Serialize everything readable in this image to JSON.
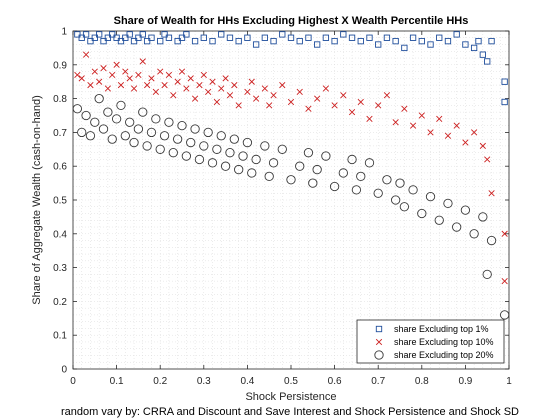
{
  "chart_data": {
    "type": "scatter",
    "title": "Share of Wealth for HHs Excluding Highest X Wealth Percentile HHs",
    "xlabel": "Shock Persistence",
    "ylabel": "Share of Aggregate Wealth (cash-on-hand)",
    "caption": "random vary by: CRRA and Discount and Save Interest and Shock Persistence and Shock SD",
    "xlim": [
      0,
      1
    ],
    "ylim": [
      0,
      1
    ],
    "xticks": [
      "0",
      "0.1",
      "0.2",
      "0.3",
      "0.4",
      "0.5",
      "0.6",
      "0.7",
      "0.8",
      "0.9",
      "1"
    ],
    "yticks": [
      "0",
      "0.1",
      "0.2",
      "0.3",
      "0.4",
      "0.5",
      "0.6",
      "0.7",
      "0.8",
      "0.9",
      "1"
    ],
    "grid": "minor",
    "legend_position": "bottom-right",
    "series": [
      {
        "name": "share Excluding top 1%",
        "marker": "square",
        "color": "#1f4e9c",
        "points": [
          [
            0.01,
            0.99
          ],
          [
            0.02,
            0.98
          ],
          [
            0.03,
            0.99
          ],
          [
            0.04,
            0.97
          ],
          [
            0.05,
            0.98
          ],
          [
            0.06,
            0.99
          ],
          [
            0.07,
            0.97
          ],
          [
            0.08,
            0.98
          ],
          [
            0.09,
            0.99
          ],
          [
            0.1,
            0.98
          ],
          [
            0.11,
            0.97
          ],
          [
            0.12,
            0.98
          ],
          [
            0.13,
            0.99
          ],
          [
            0.14,
            0.97
          ],
          [
            0.15,
            0.98
          ],
          [
            0.16,
            0.99
          ],
          [
            0.17,
            0.97
          ],
          [
            0.18,
            0.98
          ],
          [
            0.2,
            0.97
          ],
          [
            0.21,
            0.99
          ],
          [
            0.22,
            0.98
          ],
          [
            0.24,
            0.97
          ],
          [
            0.25,
            0.98
          ],
          [
            0.26,
            0.99
          ],
          [
            0.28,
            0.97
          ],
          [
            0.3,
            0.98
          ],
          [
            0.32,
            0.97
          ],
          [
            0.34,
            0.99
          ],
          [
            0.36,
            0.98
          ],
          [
            0.38,
            0.97
          ],
          [
            0.4,
            0.98
          ],
          [
            0.42,
            0.96
          ],
          [
            0.44,
            0.98
          ],
          [
            0.46,
            0.97
          ],
          [
            0.48,
            0.99
          ],
          [
            0.5,
            0.98
          ],
          [
            0.52,
            0.97
          ],
          [
            0.54,
            0.98
          ],
          [
            0.56,
            0.96
          ],
          [
            0.58,
            0.98
          ],
          [
            0.6,
            0.97
          ],
          [
            0.62,
            0.99
          ],
          [
            0.64,
            0.98
          ],
          [
            0.66,
            0.97
          ],
          [
            0.68,
            0.98
          ],
          [
            0.7,
            0.96
          ],
          [
            0.72,
            0.98
          ],
          [
            0.74,
            0.97
          ],
          [
            0.76,
            0.95
          ],
          [
            0.78,
            0.98
          ],
          [
            0.8,
            0.97
          ],
          [
            0.82,
            0.96
          ],
          [
            0.84,
            0.98
          ],
          [
            0.86,
            0.97
          ],
          [
            0.88,
            0.99
          ],
          [
            0.9,
            0.96
          ],
          [
            0.92,
            0.95
          ],
          [
            0.93,
            0.97
          ],
          [
            0.94,
            0.93
          ],
          [
            0.95,
            0.91
          ],
          [
            0.96,
            0.97
          ],
          [
            0.99,
            0.85
          ],
          [
            0.99,
            0.79
          ]
        ]
      },
      {
        "name": "share Excluding top 10%",
        "marker": "x",
        "color": "#cc1f1f",
        "points": [
          [
            0.01,
            0.87
          ],
          [
            0.02,
            0.86
          ],
          [
            0.03,
            0.93
          ],
          [
            0.04,
            0.84
          ],
          [
            0.05,
            0.88
          ],
          [
            0.06,
            0.85
          ],
          [
            0.07,
            0.89
          ],
          [
            0.08,
            0.83
          ],
          [
            0.09,
            0.87
          ],
          [
            0.1,
            0.9
          ],
          [
            0.11,
            0.84
          ],
          [
            0.12,
            0.88
          ],
          [
            0.13,
            0.86
          ],
          [
            0.14,
            0.83
          ],
          [
            0.15,
            0.87
          ],
          [
            0.16,
            0.91
          ],
          [
            0.17,
            0.84
          ],
          [
            0.18,
            0.86
          ],
          [
            0.19,
            0.82
          ],
          [
            0.2,
            0.88
          ],
          [
            0.21,
            0.84
          ],
          [
            0.22,
            0.87
          ],
          [
            0.23,
            0.81
          ],
          [
            0.24,
            0.85
          ],
          [
            0.25,
            0.88
          ],
          [
            0.26,
            0.83
          ],
          [
            0.27,
            0.86
          ],
          [
            0.28,
            0.8
          ],
          [
            0.29,
            0.84
          ],
          [
            0.3,
            0.87
          ],
          [
            0.31,
            0.82
          ],
          [
            0.32,
            0.85
          ],
          [
            0.33,
            0.79
          ],
          [
            0.34,
            0.83
          ],
          [
            0.35,
            0.86
          ],
          [
            0.36,
            0.81
          ],
          [
            0.37,
            0.84
          ],
          [
            0.38,
            0.78
          ],
          [
            0.4,
            0.82
          ],
          [
            0.41,
            0.85
          ],
          [
            0.42,
            0.8
          ],
          [
            0.44,
            0.83
          ],
          [
            0.45,
            0.78
          ],
          [
            0.46,
            0.81
          ],
          [
            0.48,
            0.84
          ],
          [
            0.5,
            0.79
          ],
          [
            0.52,
            0.82
          ],
          [
            0.54,
            0.77
          ],
          [
            0.56,
            0.8
          ],
          [
            0.58,
            0.83
          ],
          [
            0.6,
            0.78
          ],
          [
            0.62,
            0.81
          ],
          [
            0.64,
            0.76
          ],
          [
            0.66,
            0.79
          ],
          [
            0.68,
            0.74
          ],
          [
            0.7,
            0.78
          ],
          [
            0.72,
            0.81
          ],
          [
            0.74,
            0.73
          ],
          [
            0.76,
            0.77
          ],
          [
            0.78,
            0.72
          ],
          [
            0.8,
            0.75
          ],
          [
            0.82,
            0.7
          ],
          [
            0.84,
            0.74
          ],
          [
            0.86,
            0.69
          ],
          [
            0.88,
            0.72
          ],
          [
            0.9,
            0.67
          ],
          [
            0.92,
            0.7
          ],
          [
            0.94,
            0.66
          ],
          [
            0.95,
            0.62
          ],
          [
            0.96,
            0.52
          ],
          [
            0.99,
            0.4
          ],
          [
            0.99,
            0.26
          ]
        ]
      },
      {
        "name": "share Excluding top 20%",
        "marker": "circle",
        "color": "#3a3a3a",
        "points": [
          [
            0.01,
            0.77
          ],
          [
            0.02,
            0.7
          ],
          [
            0.03,
            0.75
          ],
          [
            0.04,
            0.69
          ],
          [
            0.05,
            0.73
          ],
          [
            0.06,
            0.8
          ],
          [
            0.07,
            0.71
          ],
          [
            0.08,
            0.76
          ],
          [
            0.09,
            0.68
          ],
          [
            0.1,
            0.74
          ],
          [
            0.11,
            0.78
          ],
          [
            0.12,
            0.69
          ],
          [
            0.13,
            0.73
          ],
          [
            0.14,
            0.67
          ],
          [
            0.15,
            0.71
          ],
          [
            0.16,
            0.76
          ],
          [
            0.17,
            0.66
          ],
          [
            0.18,
            0.7
          ],
          [
            0.19,
            0.74
          ],
          [
            0.2,
            0.65
          ],
          [
            0.21,
            0.69
          ],
          [
            0.22,
            0.73
          ],
          [
            0.23,
            0.64
          ],
          [
            0.24,
            0.68
          ],
          [
            0.25,
            0.72
          ],
          [
            0.26,
            0.63
          ],
          [
            0.27,
            0.67
          ],
          [
            0.28,
            0.71
          ],
          [
            0.29,
            0.62
          ],
          [
            0.3,
            0.66
          ],
          [
            0.31,
            0.7
          ],
          [
            0.32,
            0.61
          ],
          [
            0.33,
            0.65
          ],
          [
            0.34,
            0.69
          ],
          [
            0.35,
            0.6
          ],
          [
            0.36,
            0.64
          ],
          [
            0.37,
            0.68
          ],
          [
            0.38,
            0.59
          ],
          [
            0.39,
            0.63
          ],
          [
            0.4,
            0.67
          ],
          [
            0.41,
            0.58
          ],
          [
            0.42,
            0.62
          ],
          [
            0.44,
            0.66
          ],
          [
            0.45,
            0.57
          ],
          [
            0.46,
            0.61
          ],
          [
            0.48,
            0.65
          ],
          [
            0.5,
            0.56
          ],
          [
            0.52,
            0.6
          ],
          [
            0.54,
            0.64
          ],
          [
            0.55,
            0.55
          ],
          [
            0.56,
            0.59
          ],
          [
            0.58,
            0.63
          ],
          [
            0.6,
            0.54
          ],
          [
            0.62,
            0.58
          ],
          [
            0.64,
            0.62
          ],
          [
            0.65,
            0.53
          ],
          [
            0.66,
            0.57
          ],
          [
            0.68,
            0.61
          ],
          [
            0.7,
            0.52
          ],
          [
            0.72,
            0.56
          ],
          [
            0.74,
            0.5
          ],
          [
            0.75,
            0.55
          ],
          [
            0.76,
            0.48
          ],
          [
            0.78,
            0.53
          ],
          [
            0.8,
            0.46
          ],
          [
            0.82,
            0.51
          ],
          [
            0.84,
            0.44
          ],
          [
            0.86,
            0.49
          ],
          [
            0.88,
            0.42
          ],
          [
            0.9,
            0.47
          ],
          [
            0.92,
            0.4
          ],
          [
            0.94,
            0.45
          ],
          [
            0.95,
            0.28
          ],
          [
            0.96,
            0.38
          ],
          [
            0.99,
            0.16
          ]
        ]
      }
    ]
  }
}
